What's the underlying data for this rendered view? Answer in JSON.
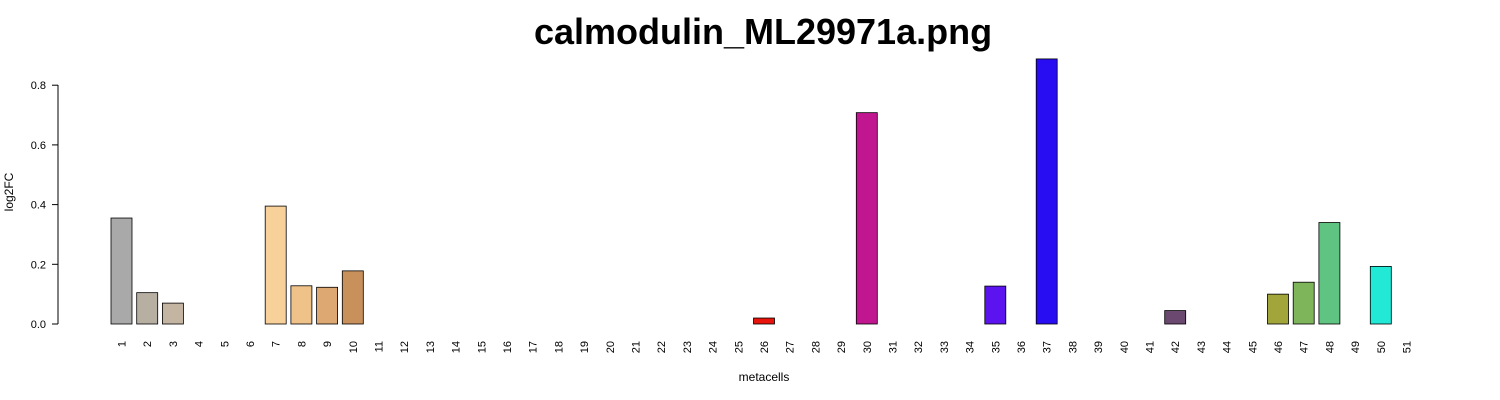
{
  "chart_data": {
    "type": "bar",
    "title": "calmodulin_ML29971a.png",
    "xlabel": "metacells",
    "ylabel": "log2FC",
    "ylim": [
      0,
      0.88
    ],
    "yticks": [
      0.0,
      0.2,
      0.4,
      0.6,
      0.8
    ],
    "ytick_labels": [
      "0.0",
      "0.2",
      "0.4",
      "0.6",
      "0.8"
    ],
    "grid": false,
    "categories": [
      "1",
      "2",
      "3",
      "4",
      "5",
      "6",
      "7",
      "8",
      "9",
      "10",
      "11",
      "12",
      "13",
      "14",
      "15",
      "16",
      "17",
      "18",
      "19",
      "20",
      "21",
      "22",
      "23",
      "24",
      "25",
      "26",
      "27",
      "28",
      "29",
      "30",
      "31",
      "32",
      "33",
      "34",
      "35",
      "36",
      "37",
      "38",
      "39",
      "40",
      "41",
      "42",
      "43",
      "44",
      "45",
      "46",
      "47",
      "48",
      "49",
      "50",
      "51"
    ],
    "values": [
      0.355,
      0.105,
      0.07,
      0,
      0,
      0,
      0.395,
      0.128,
      0.123,
      0.178,
      0,
      0,
      0,
      0,
      0,
      0,
      0,
      0,
      0,
      0,
      0,
      0,
      0,
      0,
      0,
      0.02,
      0,
      0,
      0,
      0.708,
      0,
      0,
      0,
      0,
      0.127,
      0,
      0.888,
      0,
      0,
      0,
      0,
      0.045,
      0,
      0,
      0,
      0.1,
      0.14,
      0.34,
      0,
      0.193,
      0
    ],
    "colors": [
      "#a9a9a9",
      "#b8afa3",
      "#c4b5a3",
      "#cccccc",
      "#cccccc",
      "#cccccc",
      "#f8d09a",
      "#efc28a",
      "#dea873",
      "#c8915c",
      "#cccccc",
      "#cccccc",
      "#cccccc",
      "#cccccc",
      "#cccccc",
      "#cccccc",
      "#cccccc",
      "#cccccc",
      "#cccccc",
      "#cccccc",
      "#cccccc",
      "#cccccc",
      "#cccccc",
      "#cccccc",
      "#cccccc",
      "#e8130a",
      "#cccccc",
      "#cccccc",
      "#cccccc",
      "#c0168f",
      "#cccccc",
      "#cccccc",
      "#cccccc",
      "#cccccc",
      "#5b14f0",
      "#cccccc",
      "#280cf2",
      "#cccccc",
      "#cccccc",
      "#cccccc",
      "#cccccc",
      "#6a4870",
      "#cccccc",
      "#cccccc",
      "#cccccc",
      "#a2a63a",
      "#7fb55a",
      "#5fc482",
      "#cccccc",
      "#22e8d6",
      "#cccccc"
    ]
  }
}
